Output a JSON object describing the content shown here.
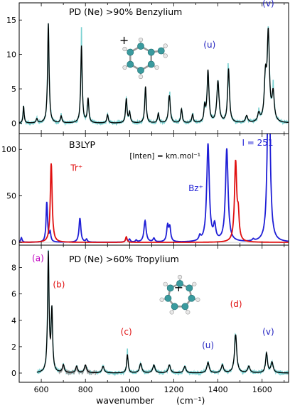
{
  "figure": {
    "xlabel": "wavenumber",
    "xunit": "(cm⁻¹)"
  },
  "chart_data": [
    {
      "type": "line",
      "panel": "top",
      "title": "PD (Ne)   >90% Benzylium",
      "xlim": [
        500,
        1720
      ],
      "ylim": [
        -1.5,
        17.5
      ],
      "yticks": [
        0,
        5,
        10,
        15
      ],
      "series": [
        {
          "color": "#000000",
          "peaks": [
            {
              "x": 520,
              "y": 2.5,
              "w": 3
            },
            {
              "x": 580,
              "y": 0.6,
              "w": 4
            },
            {
              "x": 632,
              "y": 14.5,
              "w": 4
            },
            {
              "x": 690,
              "y": 1.0,
              "w": 4
            },
            {
              "x": 782,
              "y": 11.2,
              "w": 4
            },
            {
              "x": 812,
              "y": 3.5,
              "w": 4
            },
            {
              "x": 900,
              "y": 1.2,
              "w": 4
            },
            {
              "x": 985,
              "y": 3.5,
              "w": 4
            },
            {
              "x": 1000,
              "y": 1.5,
              "w": 4
            },
            {
              "x": 1072,
              "y": 5.3,
              "w": 4
            },
            {
              "x": 1130,
              "y": 1.4,
              "w": 4
            },
            {
              "x": 1180,
              "y": 4.0,
              "w": 5
            },
            {
              "x": 1235,
              "y": 2.0,
              "w": 4
            },
            {
              "x": 1285,
              "y": 1.2,
              "w": 4
            },
            {
              "x": 1340,
              "y": 2.2,
              "w": 4
            },
            {
              "x": 1355,
              "y": 7.5,
              "w": 5
            },
            {
              "x": 1400,
              "y": 6.0,
              "w": 6
            },
            {
              "x": 1448,
              "y": 7.8,
              "w": 5
            },
            {
              "x": 1530,
              "y": 1.0,
              "w": 6
            },
            {
              "x": 1585,
              "y": 1.2,
              "w": 6
            },
            {
              "x": 1615,
              "y": 6.0,
              "w": 6
            },
            {
              "x": 1628,
              "y": 12.5,
              "w": 6
            },
            {
              "x": 1650,
              "y": 4.0,
              "w": 6
            }
          ]
        }
      ],
      "annotations": [
        {
          "text": "(u)",
          "x": 1362,
          "y": 11.0,
          "color": "#1f1fbf"
        },
        {
          "text": "(v)",
          "x": 1628,
          "y": 17.0,
          "color": "#1f1fbf"
        },
        {
          "text": "+",
          "x": 975,
          "y": 11.5,
          "color": "#000000"
        }
      ]
    },
    {
      "type": "line",
      "panel": "middle",
      "title": "B3LYP",
      "note": "[Inten] = km.mol⁻¹",
      "xlim": [
        500,
        1720
      ],
      "ylim": [
        -3,
        117
      ],
      "yticks": [
        0,
        50,
        100
      ],
      "series": [
        {
          "name": "Bz⁺",
          "color": "#1f1fd6",
          "peaks": [
            {
              "x": 510,
              "y": 5,
              "w": 4
            },
            {
              "x": 625,
              "y": 43,
              "w": 4
            },
            {
              "x": 640,
              "y": 10,
              "w": 4
            },
            {
              "x": 775,
              "y": 26,
              "w": 5
            },
            {
              "x": 805,
              "y": 3,
              "w": 4
            },
            {
              "x": 985,
              "y": 5,
              "w": 4
            },
            {
              "x": 1000,
              "y": 3,
              "w": 4
            },
            {
              "x": 1030,
              "y": 2,
              "w": 4
            },
            {
              "x": 1070,
              "y": 23,
              "w": 6
            },
            {
              "x": 1110,
              "y": 4,
              "w": 5
            },
            {
              "x": 1172,
              "y": 17,
              "w": 5
            },
            {
              "x": 1182,
              "y": 15,
              "w": 5
            },
            {
              "x": 1318,
              "y": 5,
              "w": 5
            },
            {
              "x": 1355,
              "y": 105,
              "w": 7
            },
            {
              "x": 1385,
              "y": 16,
              "w": 6
            },
            {
              "x": 1440,
              "y": 100,
              "w": 7
            },
            {
              "x": 1560,
              "y": 2,
              "w": 5
            },
            {
              "x": 1630,
              "y": 251,
              "w": 6
            }
          ]
        },
        {
          "name": "Tr⁺",
          "color": "#e01010",
          "peaks": [
            {
              "x": 645,
              "y": 85,
              "w": 5
            },
            {
              "x": 985,
              "y": 6,
              "w": 4
            },
            {
              "x": 1480,
              "y": 85,
              "w": 6
            },
            {
              "x": 1492,
              "y": 25,
              "w": 5
            }
          ]
        }
      ],
      "annotations": [
        {
          "text": "I = 251",
          "x": 1580,
          "y": 104,
          "color": "#1f1fd6"
        },
        {
          "text": "Tr⁺",
          "x": 760,
          "y": 77,
          "color": "#e01010"
        },
        {
          "text": "Bz⁺",
          "x": 1300,
          "y": 55,
          "color": "#1f1fd6"
        }
      ]
    },
    {
      "type": "line",
      "panel": "bottom",
      "title": "PD (Ne)   >60% Tropylium",
      "xlim": [
        500,
        1720
      ],
      "ylim": [
        -0.7,
        9.7
      ],
      "yticks": [
        0,
        2,
        4,
        6,
        8
      ],
      "series": [
        {
          "color": "#000000",
          "peaks": [
            {
              "x": 632,
              "y": 9.0,
              "w": 4
            },
            {
              "x": 648,
              "y": 4.6,
              "w": 4
            },
            {
              "x": 700,
              "y": 0.6,
              "w": 5
            },
            {
              "x": 760,
              "y": 0.5,
              "w": 5
            },
            {
              "x": 800,
              "y": 0.6,
              "w": 6
            },
            {
              "x": 880,
              "y": 0.5,
              "w": 6
            },
            {
              "x": 990,
              "y": 1.4,
              "w": 4
            },
            {
              "x": 1050,
              "y": 0.7,
              "w": 6
            },
            {
              "x": 1110,
              "y": 0.6,
              "w": 6
            },
            {
              "x": 1180,
              "y": 0.6,
              "w": 6
            },
            {
              "x": 1250,
              "y": 0.5,
              "w": 6
            },
            {
              "x": 1355,
              "y": 0.8,
              "w": 6
            },
            {
              "x": 1420,
              "y": 0.6,
              "w": 6
            },
            {
              "x": 1480,
              "y": 2.9,
              "w": 6
            },
            {
              "x": 1540,
              "y": 0.5,
              "w": 6
            },
            {
              "x": 1620,
              "y": 1.5,
              "w": 5
            },
            {
              "x": 1645,
              "y": 0.8,
              "w": 6
            }
          ]
        }
      ],
      "annotations": [
        {
          "text": "(a)",
          "x": 585,
          "y": 8.5,
          "color": "#c000c0"
        },
        {
          "text": "(b)",
          "x": 680,
          "y": 6.5,
          "color": "#e01010"
        },
        {
          "text": "(c)",
          "x": 985,
          "y": 2.9,
          "color": "#e01010"
        },
        {
          "text": "(u)",
          "x": 1355,
          "y": 1.9,
          "color": "#1f1fbf"
        },
        {
          "text": "(d)",
          "x": 1482,
          "y": 5.0,
          "color": "#e01010"
        },
        {
          "text": "(v)",
          "x": 1628,
          "y": 2.9,
          "color": "#1f1fbf"
        },
        {
          "text": "+",
          "x": 1222,
          "y": 6.2,
          "color": "#000000"
        }
      ]
    }
  ]
}
